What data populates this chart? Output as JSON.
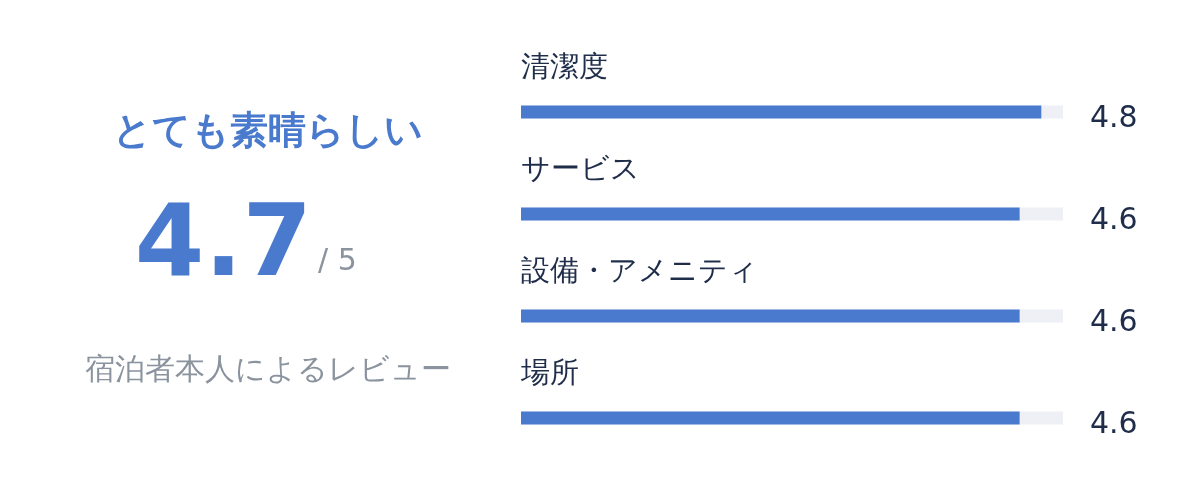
{
  "chart_data": {
    "type": "bar",
    "orientation": "horizontal",
    "title": "とても素晴らしい",
    "annotations": [
      "4.7",
      "/ 5",
      "宿泊者本人によるレビュー"
    ],
    "categories": [
      "清潔度",
      "サービス",
      "設備・アメニティ",
      "場所"
    ],
    "values": [
      4.8,
      4.6,
      4.6,
      4.6
    ],
    "color": "#4a7acd",
    "xlim": [
      0,
      5
    ],
    "data_labels": true,
    "tick_labels": "y"
  }
}
